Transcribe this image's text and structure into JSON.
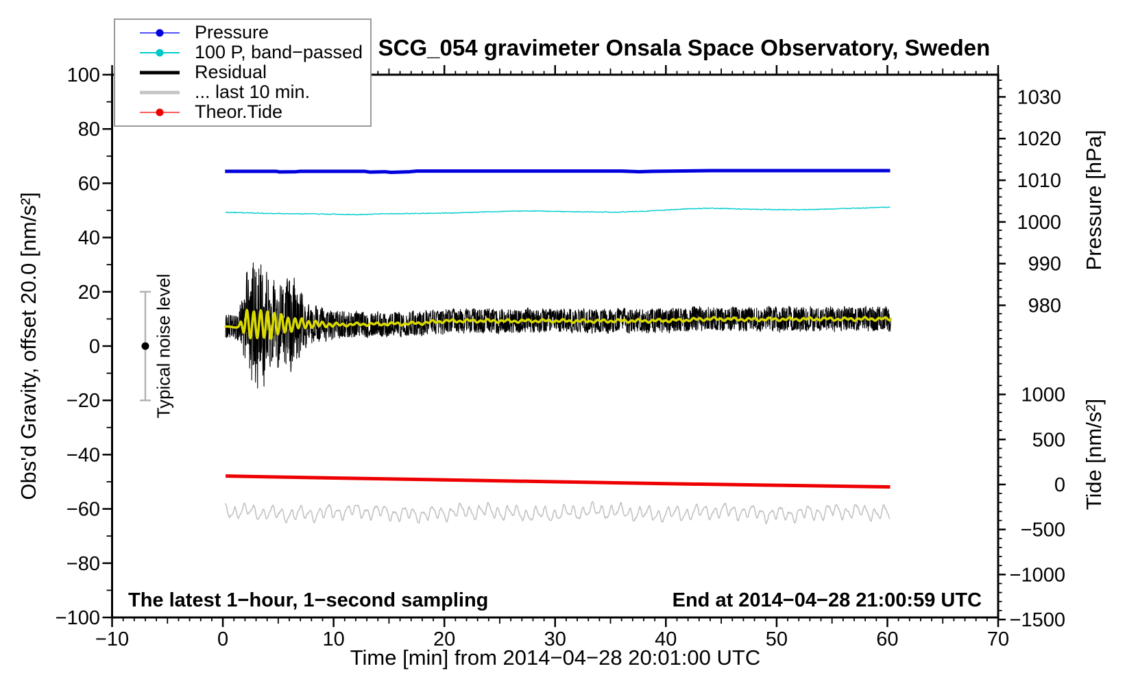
{
  "title": "SCG_054 gravimeter Onsala Space Observatory, Sweden",
  "axis_labels": {
    "left": "Obs'd Gravity, offset 20.0 [nm/s²]",
    "bottom": "Time [min] from 2014−04−28 20:01:00 UTC",
    "right_top": "Pressure [hPa]",
    "right_bottom": "Tide [nm/s²]"
  },
  "annotations": {
    "sampling": "The latest 1−hour, 1−second sampling",
    "end_time": "End at 2014−04−28 21:00:59 UTC",
    "noise": "Typical noise level"
  },
  "legend": {
    "items": [
      {
        "label": "Pressure",
        "line_color": "#5050ff",
        "dot_color": "#0000dd",
        "thick": false
      },
      {
        "label": "100 P, band−passed",
        "line_color": "#00cccc",
        "dot_color": "#00c8c8",
        "thick": false
      },
      {
        "label": "Residual",
        "line_color": "#000000",
        "thick": true
      },
      {
        "label": "... last 10 min.",
        "line_color": "#c4c4c4",
        "thick": true
      },
      {
        "label": "Theor.Tide",
        "line_color": "#ff5a5a",
        "dot_color": "#ee0000",
        "thick": false
      }
    ]
  },
  "chart_data": {
    "type": "line",
    "title": "SCG_054 gravimeter Onsala Space Observatory, Sweden",
    "xlabel": "Time [min] from 2014−04−28 20:01:00 UTC",
    "ylabel": "Obs'd Gravity, offset 20.0 [nm/s²]",
    "x_axis": {
      "min": -10,
      "max": 70,
      "major": 10,
      "medium": 5,
      "minor": 1,
      "ticks": [
        -10,
        0,
        10,
        20,
        30,
        40,
        50,
        60,
        70
      ],
      "tick_labels": [
        "−10",
        "0",
        "10",
        "20",
        "30",
        "40",
        "50",
        "60",
        "70"
      ]
    },
    "y_left": {
      "min": -100,
      "max": 100,
      "major": 20,
      "minor": 10,
      "ticks": [
        100,
        80,
        60,
        40,
        20,
        0,
        -20,
        -40,
        -60,
        -80,
        -100
      ],
      "tick_labels": [
        "100",
        "80",
        "60",
        "40",
        "20",
        "0",
        "−20",
        "−40",
        "−60",
        "−80",
        "−100"
      ]
    },
    "pressure_axis": {
      "label": "Pressure [hPa]",
      "ticks": [
        1030,
        1020,
        1010,
        1000,
        990,
        980
      ],
      "tick_labels": [
        "1030",
        "1020",
        "1010",
        "1000",
        "990",
        "980"
      ],
      "anchor_value": 1010,
      "anchor_y_frac": 0.1945,
      "frac_per_hpa": 0.00768,
      "minor_step": 2,
      "minor_range": [
        966,
        1034
      ]
    },
    "tide_axis": {
      "label": "Tide [nm/s²]",
      "ticks": [
        1000,
        500,
        0,
        -500,
        -1000,
        -1500
      ],
      "tick_labels": [
        "1000",
        "500",
        "0",
        "−500",
        "−1000",
        "−1500"
      ],
      "anchor_value": 0,
      "anchor_y_frac": 0.755,
      "frac_per_unit": 0.0001659,
      "minor_step": 100,
      "minor_range": [
        -1500,
        1200
      ]
    },
    "noise_bar": {
      "t": -7.0,
      "center": 0,
      "half_height": 20,
      "cap_half_width": 8,
      "bar_color": "#b3b3b3",
      "dot_color": "#000000",
      "label_t": -5.35
    },
    "series": {
      "pressure": {
        "name": "Pressure",
        "color": "#0000dd",
        "width": 5,
        "units": "hPa",
        "points": [
          [
            0.2,
            1012.15
          ],
          [
            4.8,
            1012.15
          ],
          [
            5.1,
            1012.0
          ],
          [
            6.6,
            1012.05
          ],
          [
            7.0,
            1012.15
          ],
          [
            12.8,
            1012.15
          ],
          [
            13.3,
            1011.95
          ],
          [
            14.6,
            1012.05
          ],
          [
            15.2,
            1011.9
          ],
          [
            16.9,
            1012.05
          ],
          [
            17.5,
            1012.2
          ],
          [
            24,
            1012.2
          ],
          [
            36,
            1012.2
          ],
          [
            37.6,
            1012.05
          ],
          [
            38.8,
            1012.15
          ],
          [
            44,
            1012.3
          ],
          [
            52,
            1012.3
          ],
          [
            60.25,
            1012.3
          ]
        ]
      },
      "band_passed": {
        "name": "100 P, band−passed",
        "color": "#00cccc",
        "width": 1.4,
        "units": "gravity",
        "jitter": 0.14,
        "seed": 911,
        "points": [
          [
            0.25,
            49.3
          ],
          [
            2,
            49.1
          ],
          [
            4,
            48.9
          ],
          [
            6,
            48.8
          ],
          [
            8,
            48.7
          ],
          [
            10,
            48.6
          ],
          [
            12,
            48.4
          ],
          [
            14,
            48.7
          ],
          [
            16,
            48.8
          ],
          [
            18,
            48.9
          ],
          [
            20,
            49.0
          ],
          [
            22,
            49.2
          ],
          [
            24,
            49.5
          ],
          [
            26,
            49.7
          ],
          [
            28,
            49.8
          ],
          [
            30,
            49.6
          ],
          [
            32,
            49.5
          ],
          [
            34,
            49.4
          ],
          [
            36,
            49.4
          ],
          [
            38,
            49.7
          ],
          [
            40,
            50.1
          ],
          [
            42,
            50.6
          ],
          [
            44,
            50.8
          ],
          [
            46,
            50.6
          ],
          [
            48,
            50.4
          ],
          [
            50,
            50.3
          ],
          [
            52,
            50.2
          ],
          [
            54,
            50.4
          ],
          [
            56,
            50.7
          ],
          [
            58,
            50.9
          ],
          [
            60.25,
            51.2
          ]
        ]
      },
      "residual": {
        "name": "Residual",
        "color": "#000000",
        "width": 1.1,
        "units": "gravity",
        "synth": {
          "seed": 1234,
          "n": 2600,
          "t0": 0.25,
          "t1": 60.3,
          "base_amp": 4.3,
          "quake": {
            "t_start": 1.25,
            "t_peak": 3.0,
            "peak_amp": 19,
            "decay": 2.2,
            "bump_t": 6.3,
            "bump_amp": 8,
            "bump_sigma": 0.8
          }
        }
      },
      "smooth": {
        "name": "Residual smoothed",
        "color": "#d9d900",
        "width": 3.5,
        "units": "gravity",
        "osc": {
          "t_start": 1.4,
          "ramp": 0.7,
          "hold_until": 4.3,
          "peak_amp": 5,
          "decay": 2.6,
          "floor": 0.35,
          "period": 0.62
        },
        "points": [
          [
            0.25,
            6.9
          ],
          [
            0.8,
            7.3
          ],
          [
            1.3,
            7.0
          ],
          [
            2,
            8.2
          ],
          [
            3,
            8.0
          ],
          [
            4,
            7.8
          ],
          [
            5,
            8.1
          ],
          [
            6,
            7.9
          ],
          [
            7,
            8.3
          ],
          [
            8,
            8.1
          ],
          [
            9,
            8.0
          ],
          [
            10,
            7.8
          ],
          [
            11,
            7.9
          ],
          [
            12,
            8.0
          ],
          [
            13,
            8.1
          ],
          [
            14,
            8.1
          ],
          [
            15,
            8.2
          ],
          [
            16,
            8.2
          ],
          [
            17,
            8.3
          ],
          [
            18,
            8.5
          ],
          [
            19,
            8.9
          ],
          [
            20,
            9.2
          ],
          [
            22,
            9.3
          ],
          [
            24,
            9.3
          ],
          [
            26,
            9.2
          ],
          [
            28,
            9.3
          ],
          [
            30,
            9.3
          ],
          [
            32,
            9.2
          ],
          [
            34,
            9.2
          ],
          [
            36,
            9.3
          ],
          [
            38,
            9.3
          ],
          [
            40,
            9.4
          ],
          [
            42,
            9.6
          ],
          [
            43,
            9.9
          ],
          [
            44,
            10.0
          ],
          [
            46,
            9.9
          ],
          [
            48,
            9.8
          ],
          [
            50,
            9.9
          ],
          [
            52,
            9.9
          ],
          [
            54,
            10.0
          ],
          [
            56,
            9.9
          ],
          [
            58,
            10.0
          ],
          [
            60.3,
            10.0
          ]
        ]
      },
      "tide": {
        "name": "Theor.Tide",
        "color": "#ee0000",
        "width": 5,
        "units": "gravity",
        "points": [
          [
            0.25,
            -47.9
          ],
          [
            10,
            -48.6
          ],
          [
            20,
            -49.3
          ],
          [
            30,
            -50.0
          ],
          [
            40,
            -50.7
          ],
          [
            50,
            -51.3
          ],
          [
            60.25,
            -51.9
          ]
        ]
      },
      "last10": {
        "name": "... last 10 min.",
        "color": "#c2c2c2",
        "width": 1.6,
        "units": "gravity",
        "synth": {
          "seed": 77,
          "n": 1400,
          "t0": 0.25,
          "t1": 60.2,
          "center": -61.4,
          "components": [
            [
              0.85,
              1.9,
              0.0
            ],
            [
              2.4,
              1.0,
              2.0
            ],
            [
              0.43,
              0.55,
              4.0
            ],
            [
              11.0,
              0.6,
              1.0
            ]
          ],
          "jitter": 0.3
        }
      }
    }
  }
}
